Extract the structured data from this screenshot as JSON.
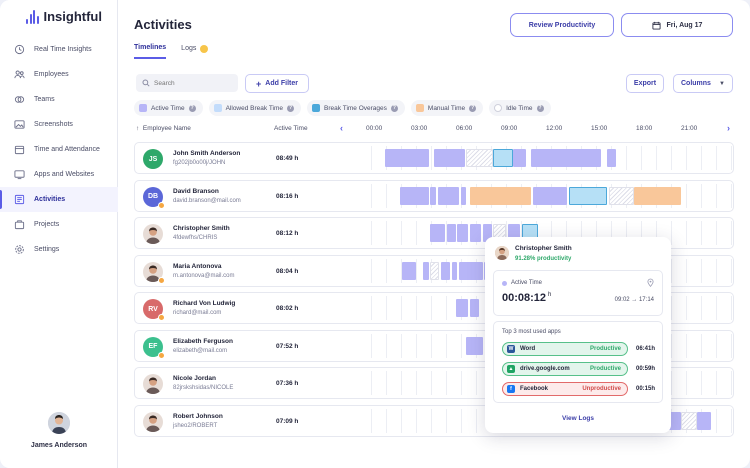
{
  "app": {
    "brand": "Insightful"
  },
  "sidebar": {
    "items": [
      {
        "label": "Real Time Insights",
        "icon": "realtime-icon",
        "active": false
      },
      {
        "label": "Employees",
        "icon": "employees-icon",
        "active": false
      },
      {
        "label": "Teams",
        "icon": "teams-icon",
        "active": false
      },
      {
        "label": "Screenshots",
        "icon": "screenshots-icon",
        "active": false
      },
      {
        "label": "Time and Attendance",
        "icon": "calendar-icon",
        "active": false
      },
      {
        "label": "Apps and Websites",
        "icon": "apps-icon",
        "active": false
      },
      {
        "label": "Activities",
        "icon": "activities-icon",
        "active": true
      },
      {
        "label": "Projects",
        "icon": "projects-icon",
        "active": false
      },
      {
        "label": "Settings",
        "icon": "gear-icon",
        "active": false
      }
    ],
    "user": {
      "name": "James Anderson"
    }
  },
  "header": {
    "title": "Activities",
    "review_label": "Review Productivity",
    "date_label": "Fri, Aug 17",
    "tabs": [
      {
        "label": "Timelines"
      },
      {
        "label": "Logs"
      }
    ]
  },
  "toolbar": {
    "search_placeholder": "Search",
    "add_filter": "Add Filter",
    "export": "Export",
    "columns": "Columns"
  },
  "legend": [
    {
      "label": "Active Time",
      "color": "#b7b5f7"
    },
    {
      "label": "Allowed Break Time",
      "color": "#c3dcfb"
    },
    {
      "label": "Break Time Overages",
      "color": "#4ca8da"
    },
    {
      "label": "Manual Time",
      "color": "#f9c79a"
    },
    {
      "label": "Idle Time",
      "color": "#dcdde8"
    }
  ],
  "table": {
    "col_employee": "Employee Name",
    "col_active": "Active Time",
    "hours": [
      "00:00",
      "03:00",
      "06:00",
      "09:00",
      "12:00",
      "15:00",
      "18:00",
      "21:00"
    ],
    "rows": [
      {
        "name": "John Smith Anderson",
        "sub": "fg202jb0o00j/JOHN",
        "initials": "JS",
        "color": "#2ea86a",
        "photo": false,
        "badge": false,
        "duration": "08:49 h",
        "segments": [
          [
            "active",
            0.04,
            0.16
          ],
          [
            "active",
            0.175,
            0.26
          ],
          [
            "idle",
            0.265,
            0.34
          ],
          [
            "over",
            0.34,
            0.395
          ],
          [
            "active",
            0.395,
            0.43
          ],
          [
            "active",
            0.445,
            0.64
          ],
          [
            "active",
            0.655,
            0.68
          ]
        ]
      },
      {
        "name": "David Branson",
        "sub": "david.branson@mail.com",
        "initials": "DB",
        "color": "#5b67d8",
        "photo": false,
        "badge": true,
        "duration": "08:16 h",
        "segments": [
          [
            "active",
            0.08,
            0.16
          ],
          [
            "active",
            0.165,
            0.18
          ],
          [
            "active",
            0.185,
            0.245
          ],
          [
            "active",
            0.25,
            0.265
          ],
          [
            "manual",
            0.275,
            0.445
          ],
          [
            "active",
            0.45,
            0.545
          ],
          [
            "over",
            0.55,
            0.655
          ],
          [
            "idle",
            0.66,
            0.73
          ],
          [
            "manual",
            0.73,
            0.86
          ]
        ]
      },
      {
        "name": "Christopher Smith",
        "sub": "4fdewfhs/CHRIS",
        "initials": "CS",
        "color": "#d9b29a",
        "photo": true,
        "badge": false,
        "duration": "08:12 h",
        "segments": [
          [
            "active",
            0.165,
            0.205
          ],
          [
            "active",
            0.21,
            0.235
          ],
          [
            "active",
            0.24,
            0.27
          ],
          [
            "active",
            0.275,
            0.305
          ],
          [
            "active",
            0.31,
            0.335
          ],
          [
            "idle",
            0.34,
            0.375
          ],
          [
            "active",
            0.38,
            0.415
          ],
          [
            "over",
            0.42,
            0.465
          ]
        ]
      },
      {
        "name": "Maria Antonova",
        "sub": "m.antonova@mail.com",
        "initials": "MA",
        "color": "#b27a6a",
        "photo": true,
        "badge": true,
        "duration": "08:04 h",
        "segments": [
          [
            "active",
            0.085,
            0.125
          ],
          [
            "active",
            0.145,
            0.16
          ],
          [
            "idle",
            0.165,
            0.19
          ],
          [
            "active",
            0.195,
            0.22
          ],
          [
            "active",
            0.225,
            0.24
          ],
          [
            "active",
            0.245,
            0.31
          ],
          [
            "active",
            0.315,
            0.33
          ]
        ]
      },
      {
        "name": "Richard Von Ludwig",
        "sub": "richard@mail.com",
        "initials": "RV",
        "color": "#d86a6a",
        "photo": false,
        "badge": true,
        "duration": "08:02 h",
        "segments": [
          [
            "active",
            0.235,
            0.27
          ],
          [
            "active",
            0.275,
            0.3
          ]
        ]
      },
      {
        "name": "Elizabeth Ferguson",
        "sub": "elizabeth@mail.com",
        "initials": "EF",
        "color": "#3cc08e",
        "photo": false,
        "badge": true,
        "duration": "07:52 h",
        "segments": [
          [
            "active",
            0.265,
            0.31
          ]
        ]
      },
      {
        "name": "Nicole Jordan",
        "sub": "82jrskshsidas/NICOLE",
        "initials": "NJ",
        "color": "#8a6a6a",
        "photo": true,
        "badge": false,
        "duration": "07:36 h",
        "segments": [
          [
            "idle",
            0.8,
            0.83
          ]
        ]
      },
      {
        "name": "Robert Johnson",
        "sub": "jsheo2/ROBERT",
        "initials": "RJ",
        "color": "#555a6a",
        "photo": true,
        "badge": false,
        "duration": "07:09 h",
        "segments": [
          [
            "active",
            0.82,
            0.86
          ],
          [
            "idle",
            0.86,
            0.905
          ],
          [
            "active",
            0.905,
            0.945
          ]
        ]
      }
    ]
  },
  "popover": {
    "name": "Christopher Smith",
    "productivity": "91.28% productivity",
    "active_label": "Active Time",
    "active_value": "00:08:12",
    "active_unit": "h",
    "range": "09:02  →  17:14",
    "apps_title": "Top 3 most used apps",
    "apps": [
      {
        "name": "Word",
        "status": "Productive",
        "duration": "06:41h",
        "kind": "prod",
        "icon": "word-icon",
        "icon_color": "#2b579a",
        "icon_letter": "W"
      },
      {
        "name": "drive.google.com",
        "status": "Productive",
        "duration": "00:59h",
        "kind": "prod",
        "icon": "drive-icon",
        "icon_color": "#1fa463",
        "icon_letter": "▲"
      },
      {
        "name": "Facebook",
        "status": "Unproductive",
        "duration": "00:15h",
        "kind": "unprod",
        "icon": "facebook-icon",
        "icon_color": "#1877f2",
        "icon_letter": "f"
      }
    ],
    "view_logs": "View Logs"
  }
}
